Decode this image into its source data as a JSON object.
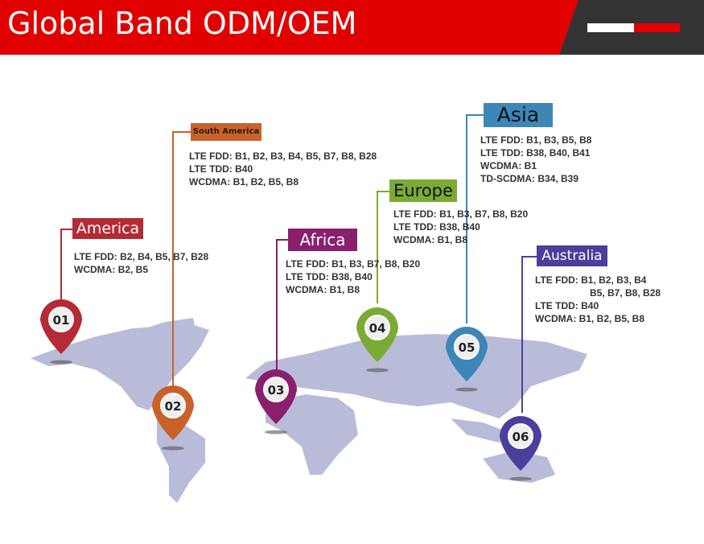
{
  "title": "Global Band ODM/OEM",
  "regions": [
    {
      "num": "01",
      "name": "America",
      "color": "#b42a35",
      "lines": [
        "LTE FDD: B2, B4, B5, B7, B28",
        "WCDMA: B2, B5"
      ]
    },
    {
      "num": "02",
      "name": "South America",
      "color": "#c8622a",
      "lines": [
        "LTE FDD: B1, B2, B3, B4, B5, B7, B8, B28",
        "LTE TDD: B40",
        "WCDMA: B1, B2, B5, B8"
      ]
    },
    {
      "num": "03",
      "name": "Africa",
      "color": "#8a1f6e",
      "lines": [
        "LTE FDD: B1, B3, B7, B8, B20",
        "LTE TDD: B38, B40",
        "WCDMA: B1, B8"
      ]
    },
    {
      "num": "04",
      "name": "Europe",
      "color": "#7aab35",
      "lines": [
        "LTE FDD: B1, B3, B7, B8, B20",
        "LTE TDD: B38, B40",
        "WCDMA: B1, B8"
      ]
    },
    {
      "num": "05",
      "name": "Asia",
      "color": "#3d87b8",
      "lines": [
        "LTE FDD: B1, B3, B5, B8",
        "LTE TDD: B38, B40, B41",
        "WCDMA: B1",
        "TD-SCDMA: B34, B39"
      ]
    },
    {
      "num": "06",
      "name": "Australia",
      "color": "#4a3f9c",
      "lines": [
        "LTE FDD: B1, B2, B3, B4",
        "B5, B7, B8, B28",
        "LTE TDD: B40",
        "WCDMA: B1, B2, B5, B8"
      ]
    }
  ]
}
